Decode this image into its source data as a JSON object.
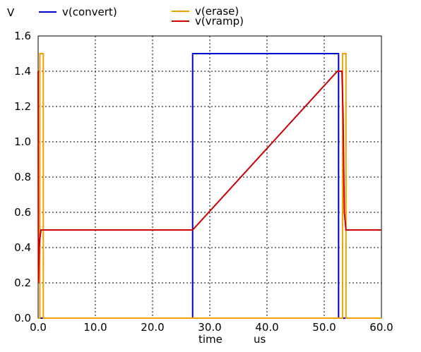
{
  "chart_data": {
    "type": "line",
    "y_unit": "V",
    "xlabel": "time",
    "x_unit": "us",
    "xlim": [
      0,
      60
    ],
    "ylim": [
      0,
      1.6
    ],
    "x_ticks": [
      "0.0",
      "10.0",
      "20.0",
      "30.0",
      "40.0",
      "50.0",
      "60.0"
    ],
    "y_ticks": [
      "0.0",
      "0.2",
      "0.4",
      "0.6",
      "0.8",
      "1.0",
      "1.2",
      "1.4",
      "1.6"
    ],
    "grid": true,
    "legend": "top",
    "series": [
      {
        "name": "v(convert)",
        "color": "#0000cc",
        "points": [
          [
            0,
            0
          ],
          [
            27,
            0
          ],
          [
            27,
            1.5
          ],
          [
            52.5,
            1.5
          ],
          [
            52.5,
            0
          ],
          [
            60,
            0
          ]
        ]
      },
      {
        "name": "v(erase)",
        "color": "#f0a000",
        "points": [
          [
            0,
            0
          ],
          [
            0.3,
            0
          ],
          [
            0.3,
            1.5
          ],
          [
            0.9,
            1.5
          ],
          [
            0.9,
            0
          ],
          [
            53.2,
            0
          ],
          [
            53.2,
            1.5
          ],
          [
            53.8,
            1.5
          ],
          [
            53.8,
            0
          ],
          [
            60,
            0
          ]
        ]
      },
      {
        "name": "v(vramp)",
        "color": "#cc0000",
        "points": [
          [
            0,
            1.4
          ],
          [
            0.05,
            0.2
          ],
          [
            0.2,
            0.4
          ],
          [
            0.3,
            0.45
          ],
          [
            0.5,
            0.5
          ],
          [
            27,
            0.5
          ],
          [
            52.3,
            1.4
          ],
          [
            53.1,
            1.4
          ],
          [
            53.3,
            1.15
          ],
          [
            53.5,
            0.6
          ],
          [
            53.8,
            0.5
          ],
          [
            60,
            0.5
          ]
        ]
      }
    ]
  }
}
